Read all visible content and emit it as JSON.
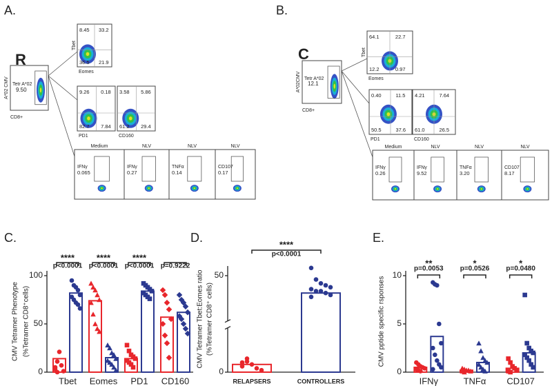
{
  "figure": {
    "panel_labels": [
      "A.",
      "B.",
      "C.",
      "D.",
      "E."
    ],
    "flow_panels": [
      {
        "group_label": "R",
        "group_color": "#e8262b",
        "tetramer": {
          "label": "Tetr A*02",
          "value": "9.50",
          "y_axis": "A*02 CMV",
          "x_axis": "CD8+"
        },
        "phenotype_plots": [
          {
            "quadrants": [
              "8.45",
              "33.2",
              "36.5",
              "21.9"
            ],
            "y_axis": "Tbet",
            "x_axis": "Eomes"
          },
          {
            "quadrants": [
              "9.26",
              "0.18",
              "82.7",
              "7.84"
            ],
            "x_axis": "PD1"
          },
          {
            "quadrants": [
              "3.58",
              "5.86",
              "61.2",
              "29.4"
            ],
            "x_axis": "CD160"
          }
        ],
        "cytokine_plots": [
          {
            "condition": "Medium",
            "marker": "IFNγ",
            "value": "0.065"
          },
          {
            "condition": "NLV",
            "marker": "IFNγ",
            "value": "0.27"
          },
          {
            "condition": "NLV",
            "marker": "TNFα",
            "value": "0.14"
          },
          {
            "condition": "NLV",
            "marker": "CD107",
            "value": "0.17"
          }
        ]
      },
      {
        "group_label": "C",
        "group_color": "#2b3990",
        "tetramer": {
          "label": "Tetr A*02",
          "value": "12.1",
          "y_axis": "A*02CMV",
          "x_axis": "CD8+"
        },
        "phenotype_plots": [
          {
            "quadrants": [
              "64.1",
              "22.7",
              "12.2",
              "0.97"
            ],
            "y_axis": "Tbet",
            "x_axis": "Eomes"
          },
          {
            "quadrants": [
              "0.40",
              "11.5",
              "50.5",
              "37.6"
            ],
            "x_axis": "PD1"
          },
          {
            "quadrants": [
              "4.21",
              "7.64",
              "61.0",
              "26.5"
            ],
            "x_axis": "CD160"
          }
        ],
        "cytokine_plots": [
          {
            "condition": "Medium",
            "marker": "IFNγ",
            "value": "0.26"
          },
          {
            "condition": "NLV",
            "marker": "IFNγ",
            "value": "9.52"
          },
          {
            "condition": "NLV",
            "marker": "TNFα",
            "value": "3.20"
          },
          {
            "condition": "NLV",
            "marker": "CD107",
            "value": "8.17"
          }
        ]
      }
    ]
  },
  "chart_data": [
    {
      "type": "bar-scatter",
      "y_label": [
        "CMV Tetramer Phenotype",
        "(%Tetramer CD8⁺cells)"
      ],
      "categories": [
        "Tbet",
        "Eomes",
        "PD1",
        "CD160"
      ],
      "markers": [
        "circle",
        "triangle",
        "square",
        "diamond"
      ],
      "series": [
        {
          "color": "#e8262b",
          "values": [
            14,
            74,
            14,
            57
          ],
          "points": [
            [
              3,
              11,
              21,
              7,
              1,
              5,
              0
            ],
            [
              92,
              88,
              85,
              80,
              75,
              72,
              60,
              50,
              45,
              42
            ],
            [
              28,
              22,
              18,
              16,
              14,
              12,
              10,
              8,
              5
            ],
            [
              85,
              80,
              72,
              65,
              55,
              50,
              38,
              30,
              15
            ]
          ]
        },
        {
          "color": "#2b3990",
          "values": [
            82,
            15,
            84,
            62
          ],
          "points": [
            [
              95,
              90,
              88,
              85,
              80,
              78,
              75,
              72,
              70,
              66
            ],
            [
              28,
              25,
              20,
              18,
              14,
              12,
              10,
              8,
              5,
              2
            ],
            [
              92,
              90,
              88,
              86,
              84,
              82,
              80,
              78,
              76
            ],
            [
              80,
              75,
              72,
              68,
              62,
              58,
              55,
              50,
              45,
              40
            ]
          ]
        }
      ],
      "ylim": [
        0,
        105
      ],
      "yticks": [
        0,
        50,
        100
      ],
      "significance_span": "series",
      "significance": [
        {
          "stars": "****",
          "p": "p<0.0001"
        },
        {
          "stars": "****",
          "p": "p<0.0001"
        },
        {
          "stars": "****",
          "p": "p<0.0001"
        },
        {
          "stars": "",
          "p": "p=0.9222"
        }
      ]
    },
    {
      "type": "bar-scatter",
      "y_label": [
        "CMV Tetramer Tbet:Eomes ratio",
        "(%Tetramer CD8⁺ cells)"
      ],
      "categories": [
        "RELAPSERS",
        "CONTROLLERS"
      ],
      "markers": [
        "circle",
        "circle"
      ],
      "series": [
        {
          "color": "#e8262b",
          "values": [
            4,
            null
          ],
          "points": [
            [
              5,
              7,
              4,
              2,
              1,
              3,
              5.5
            ],
            []
          ]
        },
        {
          "color": "#2b3990",
          "values": [
            null,
            41
          ],
          "points": [
            [],
            [
              54,
              48,
              46,
              45,
              44,
              43,
              42,
              42,
              41,
              40,
              39
            ]
          ]
        }
      ],
      "ylim": [
        0,
        55
      ],
      "yticks": [
        0,
        50
      ],
      "axis_break": true,
      "significance_span": "categories",
      "significance": [
        {
          "stars": "****",
          "p": "p<0.0001"
        }
      ]
    },
    {
      "type": "bar-scatter",
      "y_label": [
        "CMV pptide specific rsponses"
      ],
      "categories": [
        "IFNγ",
        "TNFα",
        "CD107"
      ],
      "markers": [
        "circle",
        "triangle",
        "square"
      ],
      "series": [
        {
          "color": "#e8262b",
          "values": [
            0.5,
            0.2,
            0.4
          ],
          "points": [
            [
              1.0,
              0.8,
              0.6,
              0.5,
              0.4,
              0.3,
              0.2,
              0.1
            ],
            [
              0.4,
              0.3,
              0.2,
              0.2,
              0.1,
              0.1,
              0
            ],
            [
              1.4,
              1.0,
              0.6,
              0.4,
              0.2,
              0.1,
              0
            ]
          ]
        },
        {
          "color": "#2b3990",
          "values": [
            3.7,
            1.0,
            2.0
          ],
          "points": [
            [
              9.3,
              9.1,
              9.0,
              5.0,
              3.0,
              2.5,
              1.8,
              1.2,
              0.8,
              0.5,
              0.3
            ],
            [
              3.0,
              2.2,
              1.5,
              1.2,
              1.0,
              0.8,
              0.5,
              0.3,
              0.1
            ],
            [
              8.0,
              3.0,
              2.5,
              2.2,
              2.0,
              1.8,
              1.5,
              1.2,
              0.8,
              0.5
            ]
          ]
        }
      ],
      "ylim": [
        0,
        10.5
      ],
      "yticks": [
        0,
        5,
        10
      ],
      "significance_span": "series",
      "significance": [
        {
          "stars": "**",
          "p": "p=0.0053"
        },
        {
          "stars": "*",
          "p": "p=0.0526"
        },
        {
          "stars": "*",
          "p": "p=0.0480"
        }
      ]
    }
  ]
}
